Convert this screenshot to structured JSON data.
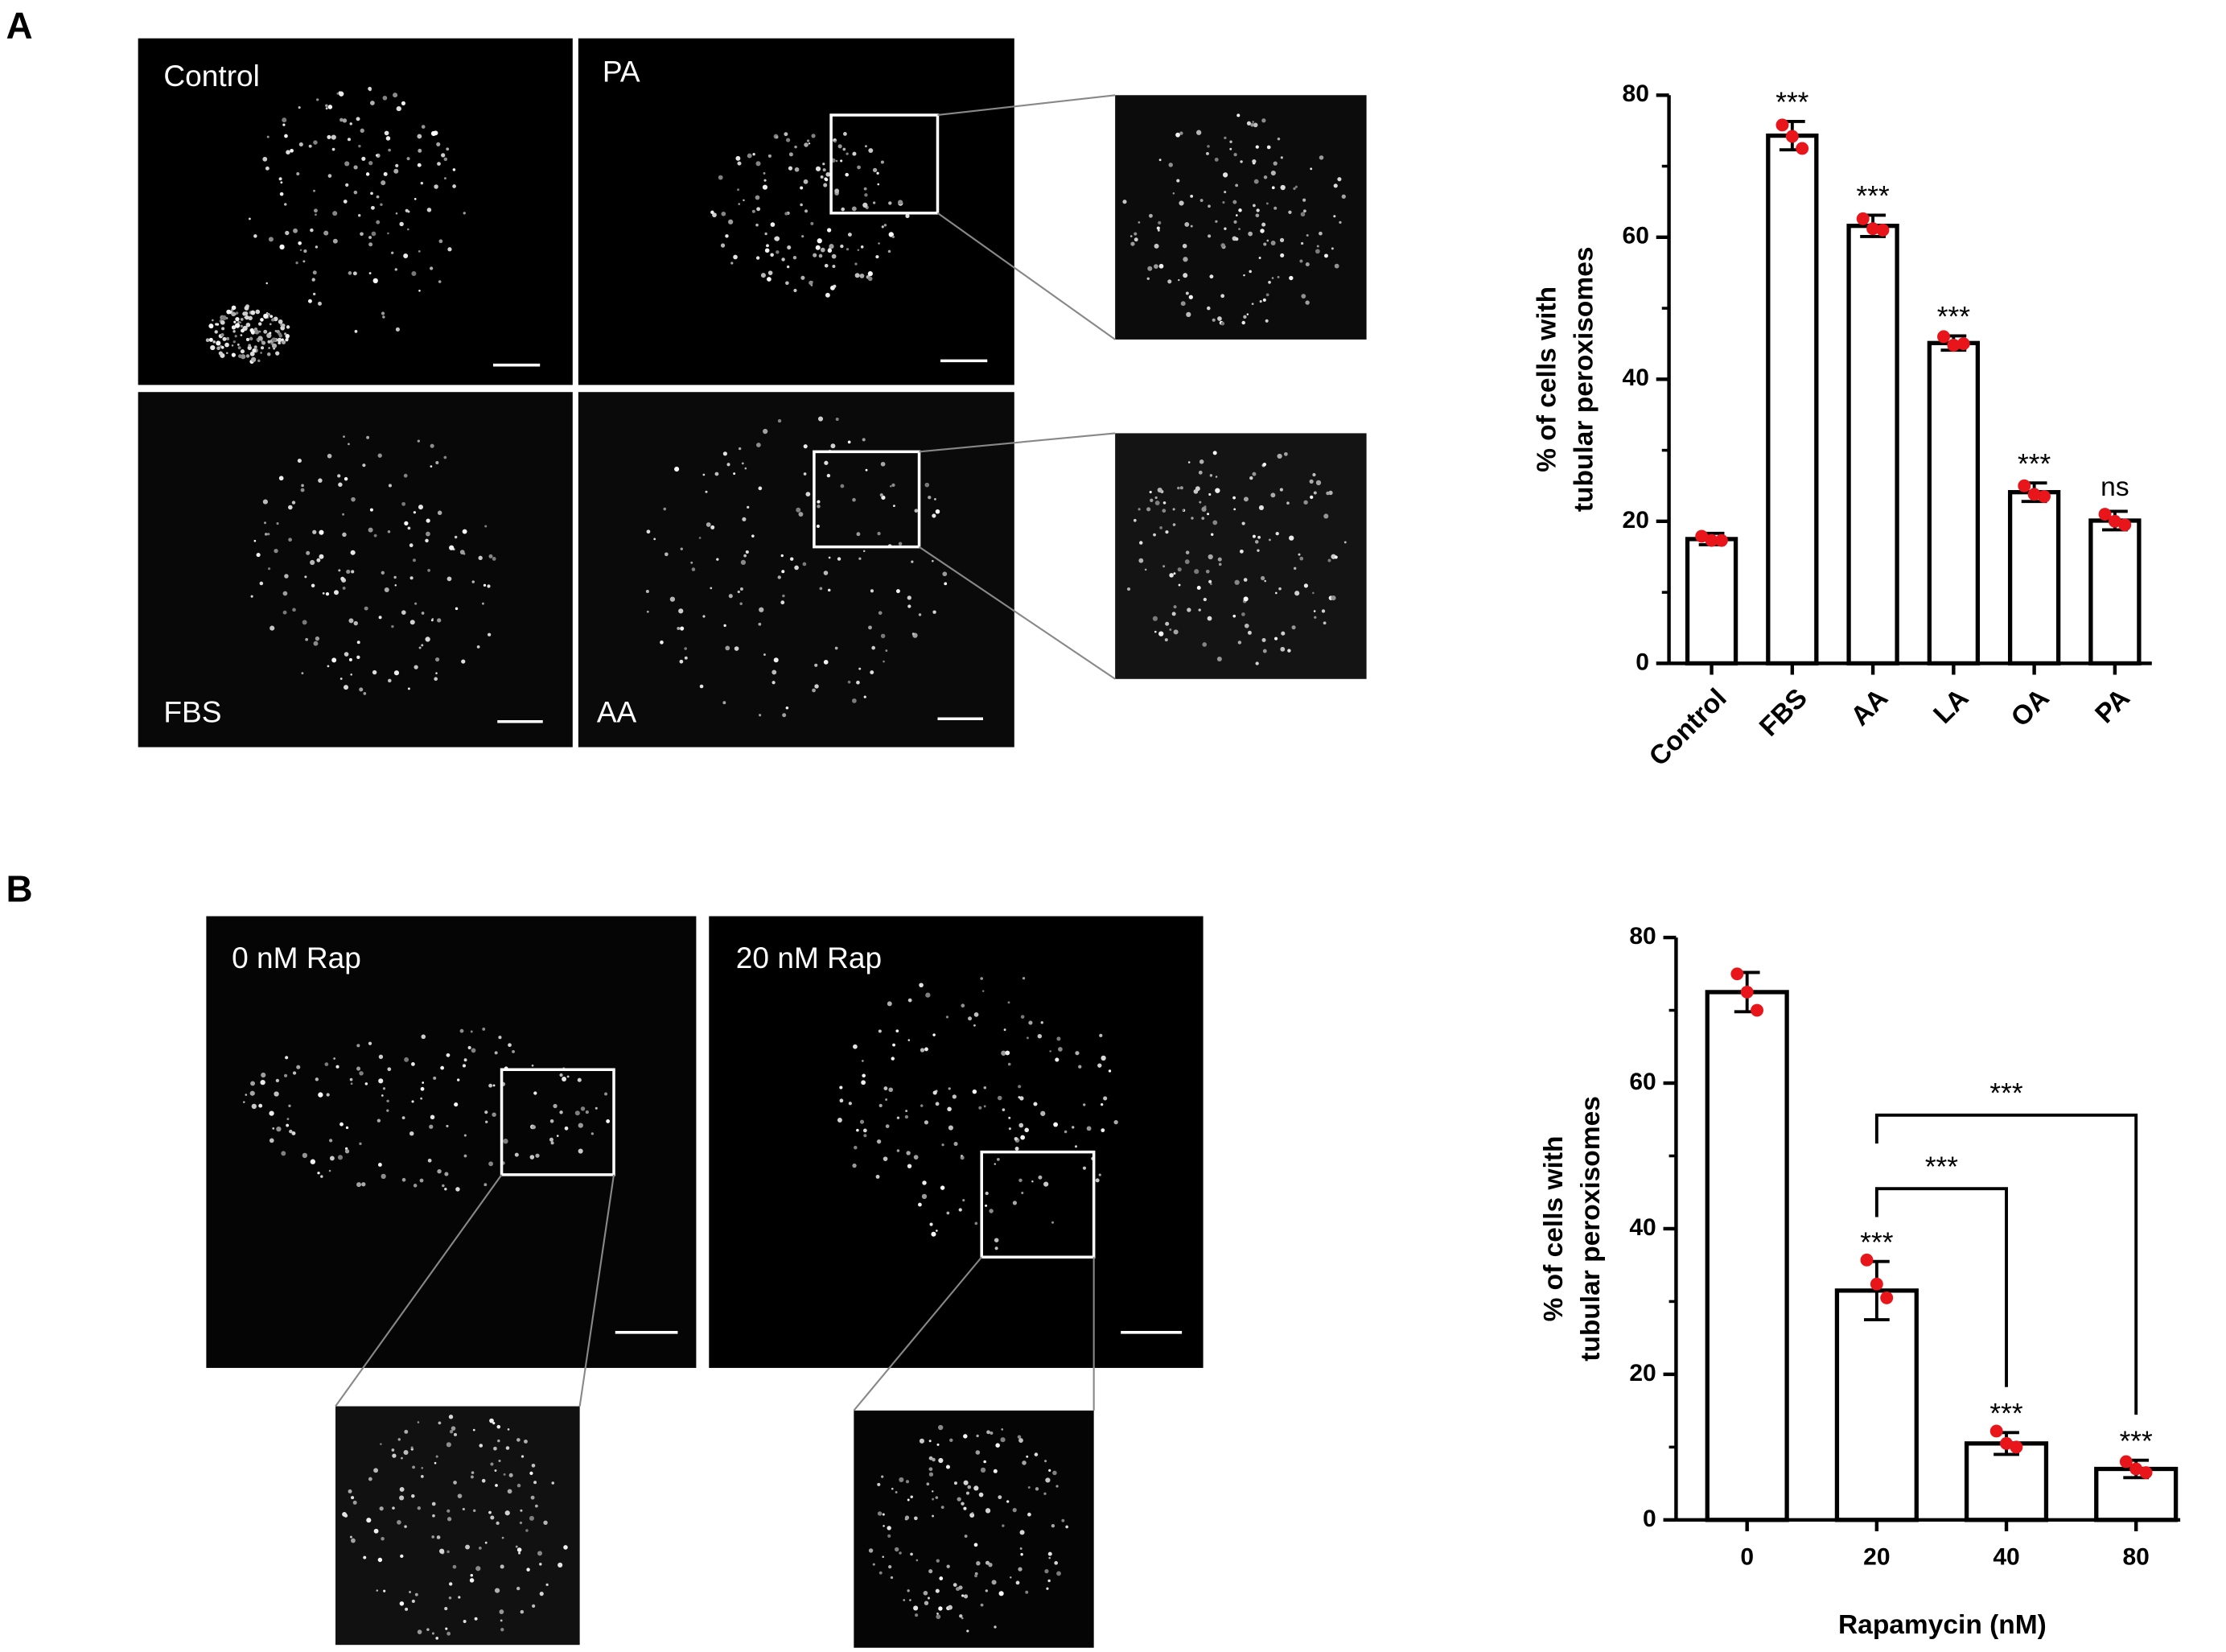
{
  "panel_labels": [
    "A",
    "B"
  ],
  "images": {
    "a": [
      "Control",
      "PA",
      "FBS",
      "AA"
    ],
    "b": [
      "0 nM Rap",
      "20 nM Rap"
    ]
  },
  "chart_data": [
    {
      "type": "bar",
      "ylabel": [
        "% of cells with",
        "tubular peroxisomes"
      ],
      "categories": [
        "Control",
        "FBS",
        "AA",
        "LA",
        "OA",
        "PA"
      ],
      "values": [
        17.5,
        74.3,
        61.6,
        45.1,
        24.1,
        20.1
      ],
      "errors": [
        0.8,
        2.0,
        1.5,
        1.0,
        1.3,
        1.3
      ],
      "points": [
        [
          17.9,
          17.3,
          17.3
        ],
        [
          75.8,
          74.2,
          72.5
        ],
        [
          62.6,
          61.2,
          61.0
        ],
        [
          46.0,
          44.8,
          45.0
        ],
        [
          25.0,
          23.8,
          23.5
        ],
        [
          21.0,
          20.0,
          19.5
        ]
      ],
      "annotations": [
        "",
        "***",
        "***",
        "***",
        "***",
        "ns"
      ],
      "ylim": [
        0,
        80
      ],
      "yticks": [
        0,
        20,
        40,
        60,
        80
      ],
      "yminor": [
        10,
        30,
        50,
        70
      ],
      "color": "#ffffff",
      "point_color": "#e8161b"
    },
    {
      "type": "bar",
      "ylabel": [
        "% of cells with",
        "tubular peroxisomes"
      ],
      "xlabel": "Rapamycin (nM)",
      "categories": [
        "0",
        "20",
        "40",
        "80"
      ],
      "values": [
        72.5,
        31.5,
        10.5,
        7.0
      ],
      "errors": [
        2.7,
        4.0,
        1.5,
        1.2
      ],
      "points": [
        [
          75.0,
          72.5,
          70.0
        ],
        [
          35.7,
          32.4,
          30.5
        ],
        [
          12.2,
          10.5,
          10.0
        ],
        [
          8.0,
          7.0,
          6.5
        ]
      ],
      "annotations": [
        "",
        "***",
        "***",
        "***"
      ],
      "brackets": [
        {
          "from": 1,
          "to": 2,
          "y": 45.5,
          "label": "***"
        },
        {
          "from": 1,
          "to": 3,
          "y": 55.6,
          "label": "***"
        }
      ],
      "ylim": [
        0,
        80
      ],
      "yticks": [
        0,
        20,
        40,
        60,
        80
      ],
      "yminor": [
        10,
        30,
        50,
        70
      ],
      "color": "#ffffff",
      "point_color": "#e8161b"
    }
  ]
}
